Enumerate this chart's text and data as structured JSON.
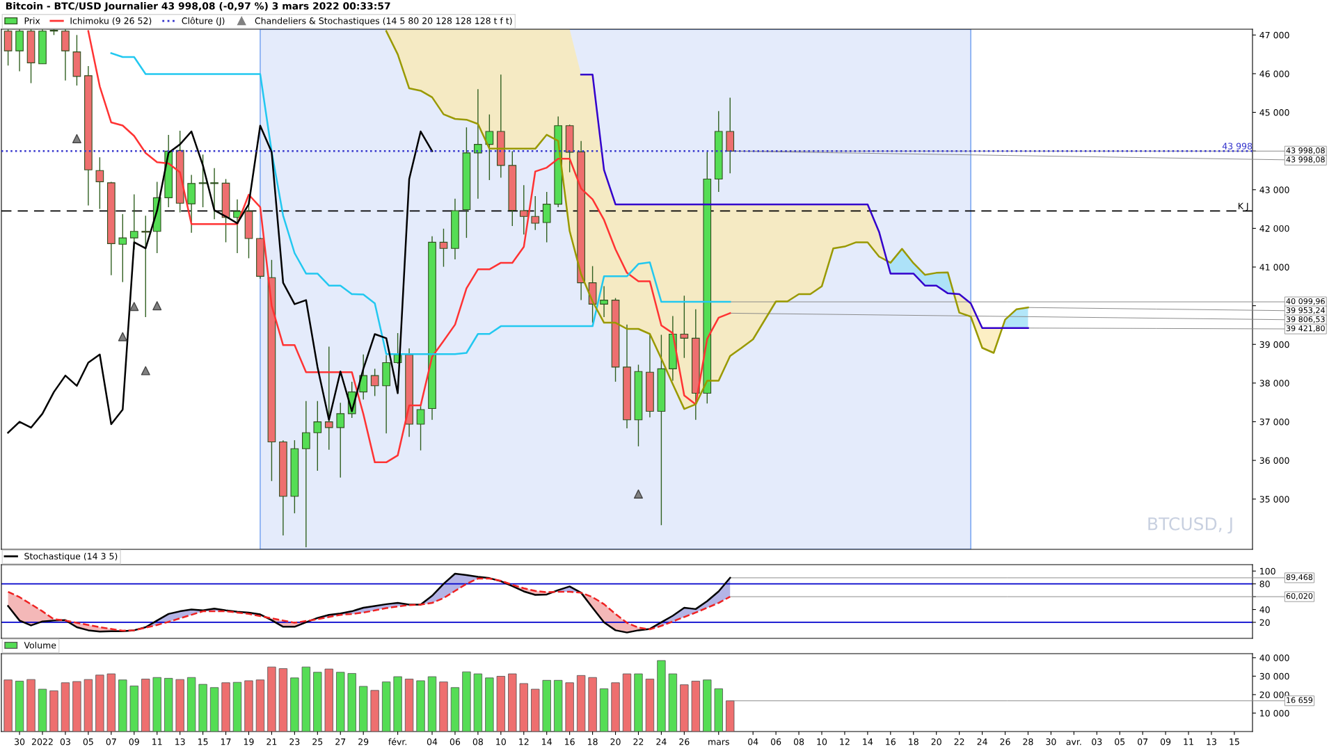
{
  "chart_data": [
    {
      "type": "candlestick",
      "title": "Bitcoin - BTC/USD Journalier 43 998,08 (-0,97 %) 3 mars 2022 00:33:57",
      "x": [
        "2021-12-29",
        "2021-12-30",
        "2021-12-31",
        "2022-01-01",
        "2022-01-02",
        "2022-01-03",
        "2022-01-04",
        "2022-01-05",
        "2022-01-06",
        "2022-01-07",
        "2022-01-08",
        "2022-01-09",
        "2022-01-10",
        "2022-01-11",
        "2022-01-12",
        "2022-01-13",
        "2022-01-14",
        "2022-01-15",
        "2022-01-16",
        "2022-01-17",
        "2022-01-18",
        "2022-01-19",
        "2022-01-20",
        "2022-01-21",
        "2022-01-22",
        "2022-01-23",
        "2022-01-24",
        "2022-01-25",
        "2022-01-26",
        "2022-01-27",
        "2022-01-28",
        "2022-01-29",
        "2022-01-30",
        "2022-01-31",
        "2022-02-01",
        "2022-02-02",
        "2022-02-03",
        "2022-02-04",
        "2022-02-05",
        "2022-02-06",
        "2022-02-07",
        "2022-02-08",
        "2022-02-09",
        "2022-02-10",
        "2022-02-11",
        "2022-02-12",
        "2022-02-13",
        "2022-02-14",
        "2022-02-15",
        "2022-02-16",
        "2022-02-17",
        "2022-02-18",
        "2022-02-19",
        "2022-02-20",
        "2022-02-21",
        "2022-02-22",
        "2022-02-23",
        "2022-02-24",
        "2022-02-25",
        "2022-02-26",
        "2022-02-27",
        "2022-02-28",
        "2022-03-01",
        "2022-03-02",
        "2022-03-03",
        "2022-03-04",
        "2022-03-05",
        "2022-03-06",
        "2022-03-07",
        "2022-03-08",
        "2022-03-09",
        "2022-03-10",
        "2022-03-11",
        "2022-03-12",
        "2022-03-13",
        "2022-03-14",
        "2022-03-15",
        "2022-03-16",
        "2022-03-17",
        "2022-03-18",
        "2022-03-19",
        "2022-03-20",
        "2022-03-21",
        "2022-03-22",
        "2022-03-23",
        "2022-03-24",
        "2022-03-25",
        "2022-03-26",
        "2022-03-27",
        "2022-03-28"
      ],
      "xlim": [
        "2021-12-28T10:00",
        "2022-04-16T14:00"
      ],
      "ylim": [
        33700,
        47150
      ],
      "yticks": [
        {
          "value": 35000,
          "label": "35 000"
        },
        {
          "value": 36000,
          "label": "36 000"
        },
        {
          "value": 37000,
          "label": "37 000"
        },
        {
          "value": 38000,
          "label": "38 000"
        },
        {
          "value": 39000,
          "label": "39 000"
        },
        {
          "value": 40000,
          "label": null
        },
        {
          "value": 41000,
          "label": "41 000"
        },
        {
          "value": 42000,
          "label": "42 000"
        },
        {
          "value": 43000,
          "label": "43 000"
        },
        {
          "value": 44000,
          "label": null
        },
        {
          "value": 45000,
          "label": "45 000"
        },
        {
          "value": 46000,
          "label": "46 000"
        },
        {
          "value": 47000,
          "label": "47 000"
        }
      ],
      "tick_labels": "y",
      "legend": "top left",
      "series": [
        {
          "type": "candlestick",
          "name": "Prix",
          "ohlc": [
            [
              47100,
              47150,
              46210,
              46590
            ],
            [
              46590,
              47150,
              46060,
              47100
            ],
            [
              47100,
              47150,
              45755,
              46280
            ],
            [
              46255,
              47150,
              46250,
              47100
            ],
            [
              47120,
              47150,
              47000,
              47100
            ],
            [
              47100,
              47150,
              45825,
              46590
            ],
            [
              46564,
              47000,
              45693,
              45930
            ],
            [
              45948,
              46195,
              42590,
              43513
            ],
            [
              43495,
              43838,
              42502,
              43205
            ],
            [
              43179,
              43205,
              40787,
              41605
            ],
            [
              41590,
              42370,
              40611,
              41754
            ],
            [
              41754,
              42880,
              41450,
              41921
            ],
            [
              41925,
              42326,
              39705,
              41900
            ],
            [
              41921,
              43205,
              41358,
              42792
            ],
            [
              42792,
              44418,
              42546,
              43996
            ],
            [
              44014,
              44524,
              42414,
              42651
            ],
            [
              42634,
              43381,
              41886,
              43161
            ],
            [
              43160,
              43908,
              42546,
              43180
            ],
            [
              43160,
              43557,
              42238,
              43180
            ],
            [
              43170,
              43275,
              41640,
              42282
            ],
            [
              42282,
              42748,
              41358,
              42440
            ],
            [
              42440,
              42722,
              41227,
              41737
            ],
            [
              41737,
              41754,
              40700,
              40760
            ],
            [
              40725,
              41183,
              35467,
              36478
            ],
            [
              36478,
              36520,
              34060,
              35071
            ],
            [
              35071,
              36522,
              34632,
              36303
            ],
            [
              36303,
              37533,
              33753,
              36716
            ],
            [
              36716,
              37533,
              35730,
              36997
            ],
            [
              36997,
              38940,
              36276,
              36848
            ],
            [
              36848,
              37489,
              35555,
              37208
            ],
            [
              37208,
              38035,
              37100,
              37771
            ],
            [
              37771,
              38738,
              37577,
              38193
            ],
            [
              38193,
              38369,
              37665,
              37929
            ],
            [
              37929,
              38720,
              36698,
              38527
            ],
            [
              38527,
              39292,
              38500,
              38738
            ],
            [
              38738,
              38896,
              36610,
              36936
            ],
            [
              36936,
              37401,
              36259,
              37314
            ],
            [
              37340,
              41798,
              37050,
              41640
            ],
            [
              41640,
              41992,
              41007,
              41482
            ],
            [
              41482,
              42765,
              41200,
              42458
            ],
            [
              42485,
              44612,
              41754,
              43952
            ],
            [
              43952,
              45597,
              42765,
              44172
            ],
            [
              44172,
              44946,
              43249,
              44506
            ],
            [
              44506,
              45975,
              43310,
              43627
            ],
            [
              43627,
              43996,
              42062,
              42467
            ],
            [
              42458,
              43117,
              41842,
              42308
            ],
            [
              42308,
              42836,
              41956,
              42132
            ],
            [
              42150,
              42941,
              41640,
              42625
            ],
            [
              42625,
              44893,
              42546,
              44656
            ],
            [
              44656,
              44682,
              43451,
              43970
            ],
            [
              43978,
              44260,
              40145,
              40593
            ],
            [
              40593,
              41024,
              39556,
              40040
            ],
            [
              40040,
              40505,
              39705,
              40145
            ],
            [
              40145,
              40198,
              38035,
              38413
            ],
            [
              38413,
              39512,
              36830,
              37050
            ],
            [
              37050,
              38474,
              36364,
              38299
            ],
            [
              38281,
              39266,
              37112,
              37270
            ],
            [
              37270,
              39248,
              34324,
              38369
            ],
            [
              38369,
              39732,
              38061,
              39266
            ],
            [
              39266,
              40259,
              38650,
              39160
            ],
            [
              39160,
              39908,
              37050,
              37736
            ],
            [
              37736,
              43979,
              37472,
              43276
            ],
            [
              43276,
              45034,
              42941,
              44506
            ],
            [
              44506,
              45377,
              43425,
              43998.08
            ],
            null,
            null,
            null,
            null,
            null,
            null,
            null,
            null,
            null,
            null,
            null,
            null,
            null,
            null,
            null,
            null,
            null,
            null,
            null,
            null,
            null,
            null,
            null,
            null,
            null,
            null
          ]
        },
        {
          "type": "line",
          "name": "Ichimoku (9 26 52)",
          "color": "#ff3333",
          "values": [
            null,
            null,
            null,
            null,
            null,
            null,
            null,
            47100,
            45670,
            44740,
            44660,
            44390,
            43950,
            43710,
            43680,
            43450,
            42110,
            42110,
            42110,
            42110,
            42110,
            42870,
            42550,
            40000,
            38980,
            38980,
            38280,
            38280,
            38280,
            38280,
            38280,
            37200,
            35950,
            35950,
            36130,
            37420,
            37420,
            38680,
            39090,
            39510,
            40450,
            40940,
            40940,
            41110,
            41110,
            41520,
            43470,
            43570,
            43800,
            43800,
            43030,
            42750,
            42220,
            41460,
            40850,
            40630,
            40630,
            39490,
            39290,
            37680,
            37450,
            39140,
            39690,
            39806.53,
            null,
            null,
            null,
            null,
            null,
            null,
            null,
            null,
            null,
            null,
            null,
            null,
            null,
            null,
            null,
            null,
            null,
            null,
            null,
            null,
            null,
            null,
            null,
            null,
            null,
            null
          ]
        },
        {
          "type": "line",
          "color": "#22c8f0",
          "values": [
            null,
            null,
            null,
            null,
            null,
            null,
            null,
            null,
            null,
            46530,
            46430,
            46430,
            45990,
            45990,
            45990,
            45990,
            45990,
            45990,
            45990,
            45990,
            45990,
            45990,
            45990,
            43980,
            42330,
            41360,
            40830,
            40830,
            40520,
            40520,
            40300,
            40290,
            40060,
            38750,
            38750,
            38750,
            38750,
            38750,
            38750,
            38750,
            38780,
            39270,
            39270,
            39470,
            39470,
            39470,
            39470,
            39470,
            39470,
            39470,
            39470,
            39470,
            40760,
            40760,
            40760,
            41080,
            41120,
            40099.96,
            40099.96,
            40099.96,
            40099.96,
            40099.96,
            40099.96,
            40099.96,
            null,
            null,
            null,
            null,
            null,
            null,
            null,
            null,
            null,
            null,
            null,
            null,
            null,
            null,
            null,
            null,
            null,
            null,
            null,
            null,
            null,
            null,
            null,
            null,
            null,
            null
          ]
        },
        {
          "type": "line",
          "color": "#000000",
          "values": [
            36716,
            36997,
            36848,
            37208,
            37771,
            38193,
            37929,
            38527,
            38738,
            36936,
            37314,
            41640,
            41482,
            42458,
            43952,
            44172,
            44506,
            43627,
            42467,
            42308,
            42132,
            42625,
            44656,
            43970,
            40593,
            40040,
            40145,
            38413,
            37050,
            38299,
            37270,
            38369,
            39266,
            39160,
            37736,
            43276,
            44506,
            43998.08,
            null,
            null,
            null,
            null,
            null,
            null,
            null,
            null,
            null,
            null,
            null,
            null,
            null,
            null,
            null,
            null,
            null,
            null,
            null,
            null,
            null,
            null,
            null,
            null,
            null,
            null,
            null,
            null,
            null,
            null,
            null,
            null,
            null,
            null,
            null,
            null,
            null,
            null,
            null,
            null,
            null,
            null,
            null,
            null,
            null,
            null,
            null,
            null,
            null,
            null,
            null,
            null
          ]
        },
        {
          "type": "line",
          "color": "#999900",
          "values": [
            null,
            null,
            null,
            null,
            null,
            null,
            null,
            null,
            null,
            null,
            null,
            null,
            null,
            null,
            null,
            null,
            null,
            null,
            null,
            null,
            null,
            null,
            null,
            null,
            null,
            null,
            null,
            null,
            null,
            null,
            null,
            null,
            null,
            47100,
            46500,
            45620,
            45560,
            45390,
            44950,
            44830,
            44810,
            44700,
            44060,
            44060,
            44060,
            44060,
            44060,
            44420,
            44260,
            41930,
            40810,
            40110,
            39560,
            39560,
            39400,
            39400,
            39270,
            38630,
            37970,
            37330,
            37450,
            38060,
            38060,
            38700,
            38910,
            39130,
            39620,
            40110,
            40110,
            40300,
            40300,
            40500,
            41480,
            41530,
            41640,
            41640,
            41270,
            41110,
            41470,
            41100,
            40800,
            40850,
            40860,
            39820,
            39720,
            38910,
            38780,
            39640,
            39910,
            39953.24
          ]
        },
        {
          "type": "line",
          "color": "#3300cc",
          "values": [
            null,
            null,
            null,
            null,
            null,
            null,
            null,
            null,
            null,
            null,
            null,
            null,
            null,
            null,
            null,
            null,
            null,
            null,
            null,
            null,
            null,
            null,
            null,
            null,
            null,
            null,
            null,
            null,
            null,
            null,
            null,
            null,
            null,
            null,
            null,
            null,
            null,
            null,
            null,
            null,
            null,
            null,
            null,
            null,
            null,
            null,
            null,
            null,
            null,
            null,
            45975,
            45975,
            43510,
            42620,
            42620,
            42620,
            42620,
            42620,
            42620,
            42620,
            42620,
            42620,
            42620,
            42620,
            42620,
            42620,
            42620,
            42620,
            42620,
            42620,
            42620,
            42620,
            42620,
            42620,
            42620,
            42620,
            41910,
            40830,
            40830,
            40830,
            40520,
            40520,
            40320,
            40300,
            40060,
            39421.8,
            39421.8,
            39421.8,
            39421.8,
            39421.8
          ]
        },
        {
          "type": "line",
          "name": "Clôture (J)",
          "color": "#3333cc",
          "line_style": "dotted",
          "x": [
            "2021-12-28T10:00",
            "2022-04-16T14:00"
          ],
          "values": [
            43998.08,
            43998.08
          ],
          "value_labels": [
            null,
            "43 998"
          ]
        },
        {
          "type": "scatter",
          "name": "Chandeliers & Stochastiques (14 5 80 20 128 128 128 t f t)",
          "color": "#808080",
          "marker": "triangle",
          "x": [
            "2022-01-04",
            "2022-01-08",
            "2022-01-09",
            "2022-01-10",
            "2022-01-11",
            "2022-02-22"
          ],
          "values": [
            44320,
            39200,
            39980,
            38320,
            40000,
            35130
          ]
        }
      ],
      "ref_lines": [
        {
          "axis": "y",
          "value": 42450,
          "label": "K J",
          "color": "#000000",
          "line_style": "dashed"
        }
      ],
      "bands": [
        {
          "axis": "x",
          "from": "2022-01-20",
          "to": "2022-03-23",
          "color": "#e4ebfb"
        }
      ],
      "annotations": [
        {
          "text": "43 998,08",
          "x": "2022-03-02",
          "y": 43998.08
        },
        {
          "text": "43 998,08",
          "x": "2022-03-02",
          "y": 43998.08
        },
        {
          "text": "40 099,96",
          "x": "2022-03-02",
          "y": 40099.96
        },
        {
          "text": "39 953,24",
          "x": "2022-03-28",
          "y": 39953.24
        },
        {
          "text": "39 806,53",
          "x": "2022-03-02",
          "y": 39806.53
        },
        {
          "text": "39 421,80",
          "x": "2022-03-28",
          "y": 39421.8
        },
        "BTCUSD, J"
      ]
    },
    {
      "type": "line",
      "x": [
        "2021-12-29",
        "2021-12-30",
        "2021-12-31",
        "2022-01-01",
        "2022-01-02",
        "2022-01-03",
        "2022-01-04",
        "2022-01-05",
        "2022-01-06",
        "2022-01-07",
        "2022-01-08",
        "2022-01-09",
        "2022-01-10",
        "2022-01-11",
        "2022-01-12",
        "2022-01-13",
        "2022-01-14",
        "2022-01-15",
        "2022-01-16",
        "2022-01-17",
        "2022-01-18",
        "2022-01-19",
        "2022-01-20",
        "2022-01-21",
        "2022-01-22",
        "2022-01-23",
        "2022-01-24",
        "2022-01-25",
        "2022-01-26",
        "2022-01-27",
        "2022-01-28",
        "2022-01-29",
        "2022-01-30",
        "2022-01-31",
        "2022-02-01",
        "2022-02-02",
        "2022-02-03",
        "2022-02-04",
        "2022-02-05",
        "2022-02-06",
        "2022-02-07",
        "2022-02-08",
        "2022-02-09",
        "2022-02-10",
        "2022-02-11",
        "2022-02-12",
        "2022-02-13",
        "2022-02-14",
        "2022-02-15",
        "2022-02-16",
        "2022-02-17",
        "2022-02-18",
        "2022-02-19",
        "2022-02-20",
        "2022-02-21",
        "2022-02-22",
        "2022-02-23",
        "2022-02-24",
        "2022-02-25",
        "2022-02-26",
        "2022-02-27",
        "2022-02-28",
        "2022-03-01",
        "2022-03-02"
      ],
      "xlim": [
        "2021-12-28T10:00",
        "2022-04-16T14:00"
      ],
      "ylim": [
        -5,
        110
      ],
      "yticks": [
        20,
        40,
        {
          "value": 60,
          "label": null
        },
        80,
        100
      ],
      "tick_labels": "y",
      "legend": "top left",
      "series": [
        {
          "name": "Stochastique (14 3 5)",
          "color": "#000000",
          "values": [
            45.5,
            22.8,
            15.2,
            21.4,
            22.8,
            23.4,
            12.4,
            7.6,
            5.5,
            6.2,
            6.2,
            7.6,
            12.4,
            22.8,
            33.1,
            37.2,
            40,
            38.6,
            41.4,
            38.6,
            36.6,
            35.2,
            32.4,
            23.4,
            13.1,
            13.1,
            20,
            26.9,
            31.7,
            33.8,
            37.2,
            42.8,
            45.5,
            48.3,
            50.3,
            47.6,
            47.6,
            61.4,
            80,
            95.9,
            93.8,
            91,
            89,
            84.1,
            76.6,
            68.3,
            62.8,
            63.4,
            70.3,
            75.9,
            66.2,
            42.8,
            20,
            7.6,
            4.1,
            7.6,
            9.7,
            20,
            30.3,
            42.8,
            40.7,
            53.1,
            68.3,
            89.468
          ]
        },
        {
          "color": "#ee2222",
          "line_style": "dashed",
          "values": [
            67.6,
            59.3,
            48.3,
            37.2,
            24.8,
            22.8,
            19.3,
            15.9,
            12.4,
            9.7,
            6.9,
            7.6,
            11.7,
            15.9,
            20.7,
            26.2,
            31.7,
            37.2,
            37.2,
            37.2,
            35.2,
            33.1,
            29.7,
            26.2,
            22.8,
            19.3,
            22.1,
            24.8,
            28.3,
            31.7,
            33.1,
            35.2,
            38.6,
            42.1,
            44.8,
            46.9,
            47.6,
            50.3,
            57.9,
            69,
            80,
            88.3,
            88.3,
            84.8,
            78.6,
            73.1,
            69,
            66.9,
            67.6,
            67.6,
            66.2,
            59.3,
            48.3,
            33.1,
            19.3,
            11.7,
            9,
            14.5,
            21.4,
            28.3,
            35.2,
            42.8,
            50.3,
            60.02
          ]
        }
      ],
      "ref_lines": [
        {
          "axis": "y",
          "value": 80,
          "color": "#0000cc"
        },
        {
          "axis": "y",
          "value": 20,
          "color": "#0000cc"
        }
      ],
      "annotations": [
        {
          "text": "89,468",
          "x": "2022-03-02",
          "y": 89.468
        },
        {
          "text": "60,020",
          "x": "2022-03-02",
          "y": 60.02
        }
      ]
    },
    {
      "type": "bar",
      "x": [
        "2021-12-29",
        "2021-12-30",
        "2021-12-31",
        "2022-01-01",
        "2022-01-02",
        "2022-01-03",
        "2022-01-04",
        "2022-01-05",
        "2022-01-06",
        "2022-01-07",
        "2022-01-08",
        "2022-01-09",
        "2022-01-10",
        "2022-01-11",
        "2022-01-12",
        "2022-01-13",
        "2022-01-14",
        "2022-01-15",
        "2022-01-16",
        "2022-01-17",
        "2022-01-18",
        "2022-01-19",
        "2022-01-20",
        "2022-01-21",
        "2022-01-22",
        "2022-01-23",
        "2022-01-24",
        "2022-01-25",
        "2022-01-26",
        "2022-01-27",
        "2022-01-28",
        "2022-01-29",
        "2022-01-30",
        "2022-01-31",
        "2022-02-01",
        "2022-02-02",
        "2022-02-03",
        "2022-02-04",
        "2022-02-05",
        "2022-02-06",
        "2022-02-07",
        "2022-02-08",
        "2022-02-09",
        "2022-02-10",
        "2022-02-11",
        "2022-02-12",
        "2022-02-13",
        "2022-02-14",
        "2022-02-15",
        "2022-02-16",
        "2022-02-17",
        "2022-02-18",
        "2022-02-19",
        "2022-02-20",
        "2022-02-21",
        "2022-02-22",
        "2022-02-23",
        "2022-02-24",
        "2022-02-25",
        "2022-02-26",
        "2022-02-27",
        "2022-02-28",
        "2022-03-01",
        "2022-03-02"
      ],
      "xlim": [
        "2021-12-28T10:00",
        "2022-04-16T14:00"
      ],
      "xticks": [
        {
          "value": "2021-12-30",
          "label": "30"
        },
        {
          "value": "2022-01-01",
          "label": "2022"
        },
        {
          "value": "2022-01-03",
          "label": "03"
        },
        {
          "value": "2022-01-05",
          "label": "05"
        },
        {
          "value": "2022-01-07",
          "label": "07"
        },
        {
          "value": "2022-01-09",
          "label": "09"
        },
        {
          "value": "2022-01-11",
          "label": "11"
        },
        {
          "value": "2022-01-13",
          "label": "13"
        },
        {
          "value": "2022-01-15",
          "label": "15"
        },
        {
          "value": "2022-01-17",
          "label": "17"
        },
        {
          "value": "2022-01-19",
          "label": "19"
        },
        {
          "value": "2022-01-21",
          "label": "21"
        },
        {
          "value": "2022-01-23",
          "label": "23"
        },
        {
          "value": "2022-01-25",
          "label": "25"
        },
        {
          "value": "2022-01-27",
          "label": "27"
        },
        {
          "value": "2022-01-29",
          "label": "29"
        },
        {
          "value": "2022-02-01",
          "label": "févr."
        },
        {
          "value": "2022-02-04",
          "label": "04"
        },
        {
          "value": "2022-02-06",
          "label": "06"
        },
        {
          "value": "2022-02-08",
          "label": "08"
        },
        {
          "value": "2022-02-10",
          "label": "10"
        },
        {
          "value": "2022-02-12",
          "label": "12"
        },
        {
          "value": "2022-02-14",
          "label": "14"
        },
        {
          "value": "2022-02-16",
          "label": "16"
        },
        {
          "value": "2022-02-18",
          "label": "18"
        },
        {
          "value": "2022-02-20",
          "label": "20"
        },
        {
          "value": "2022-02-22",
          "label": "22"
        },
        {
          "value": "2022-02-24",
          "label": "24"
        },
        {
          "value": "2022-02-26",
          "label": "26"
        },
        {
          "value": "2022-03-01",
          "label": "mars"
        },
        {
          "value": "2022-03-04",
          "label": "04"
        },
        {
          "value": "2022-03-06",
          "label": "06"
        },
        {
          "value": "2022-03-08",
          "label": "08"
        },
        {
          "value": "2022-03-10",
          "label": "10"
        },
        {
          "value": "2022-03-12",
          "label": "12"
        },
        {
          "value": "2022-03-14",
          "label": "14"
        },
        {
          "value": "2022-03-16",
          "label": "16"
        },
        {
          "value": "2022-03-18",
          "label": "18"
        },
        {
          "value": "2022-03-20",
          "label": "20"
        },
        {
          "value": "2022-03-22",
          "label": "22"
        },
        {
          "value": "2022-03-24",
          "label": "24"
        },
        {
          "value": "2022-03-26",
          "label": "26"
        },
        {
          "value": "2022-03-28",
          "label": "28"
        },
        {
          "value": "2022-03-30",
          "label": "30"
        },
        {
          "value": "2022-04-01",
          "label": "avr."
        },
        {
          "value": "2022-04-03",
          "label": "03"
        },
        {
          "value": "2022-04-05",
          "label": "05"
        },
        {
          "value": "2022-04-07",
          "label": "07"
        },
        {
          "value": "2022-04-09",
          "label": "09"
        },
        {
          "value": "2022-04-11",
          "label": "11"
        },
        {
          "value": "2022-04-13",
          "label": "13"
        },
        {
          "value": "2022-04-15",
          "label": "15"
        }
      ],
      "ylim": [
        0,
        42200
      ],
      "yticks": [
        {
          "value": 10000,
          "label": "10 000"
        },
        {
          "value": 20000,
          "label": "20 000"
        },
        {
          "value": 30000,
          "label": "30 000"
        },
        {
          "value": 40000,
          "label": "40 000"
        }
      ],
      "legend": "top left",
      "series": [
        {
          "name": "Volume",
          "color": "#55dd55",
          "colors": [
            "#ee6f6f",
            "#55dd55",
            "#ee6f6f",
            "#55dd55",
            "#ee6f6f",
            "#ee6f6f",
            "#ee6f6f",
            "#ee6f6f",
            "#ee6f6f",
            "#ee6f6f",
            "#55dd55",
            "#55dd55",
            "#ee6f6f",
            "#55dd55",
            "#55dd55",
            "#ee6f6f",
            "#55dd55",
            "#55dd55",
            "#55dd55",
            "#ee6f6f",
            "#55dd55",
            "#ee6f6f",
            "#ee6f6f",
            "#ee6f6f",
            "#ee6f6f",
            "#55dd55",
            "#55dd55",
            "#55dd55",
            "#ee6f6f",
            "#55dd55",
            "#55dd55",
            "#55dd55",
            "#ee6f6f",
            "#55dd55",
            "#55dd55",
            "#ee6f6f",
            "#55dd55",
            "#55dd55",
            "#ee6f6f",
            "#55dd55",
            "#55dd55",
            "#55dd55",
            "#55dd55",
            "#ee6f6f",
            "#ee6f6f",
            "#ee6f6f",
            "#ee6f6f",
            "#55dd55",
            "#55dd55",
            "#ee6f6f",
            "#ee6f6f",
            "#ee6f6f",
            "#55dd55",
            "#ee6f6f",
            "#ee6f6f",
            "#55dd55",
            "#ee6f6f",
            "#55dd55",
            "#55dd55",
            "#ee6f6f",
            "#ee6f6f",
            "#55dd55",
            "#55dd55",
            "#ee6f6f"
          ],
          "values": [
            27980,
            27320,
            28200,
            22950,
            22080,
            26450,
            27100,
            28200,
            30600,
            31260,
            27980,
            24700,
            28420,
            29290,
            28850,
            28200,
            29290,
            25580,
            23830,
            26450,
            26670,
            27540,
            27980,
            34980,
            34100,
            29070,
            34980,
            32130,
            33880,
            32130,
            31480,
            24480,
            22300,
            26890,
            29730,
            28420,
            27540,
            29730,
            26890,
            23830,
            32350,
            31260,
            29070,
            29950,
            31260,
            26010,
            22950,
            27760,
            27760,
            26450,
            30390,
            29290,
            23170,
            26450,
            31260,
            31260,
            28420,
            38470,
            31260,
            25360,
            27320,
            27980,
            23170,
            16659
          ]
        }
      ],
      "annotations": [
        {
          "text": "16 659",
          "x": "2022-03-02",
          "y": 16659
        }
      ]
    }
  ]
}
